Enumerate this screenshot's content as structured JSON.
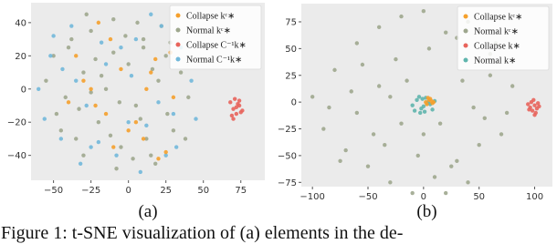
{
  "chart_data": [
    {
      "type": "scatter",
      "title": "(a)",
      "legend": "upper right",
      "xlim": [
        -65,
        91
      ],
      "ylim": [
        -55,
        52
      ],
      "xticks": [
        {
          "value": -50,
          "label": "−50"
        },
        {
          "value": -25,
          "label": "−25"
        },
        0,
        25,
        50,
        75
      ],
      "yticks": [
        {
          "value": -40,
          "label": "−40"
        },
        {
          "value": -20,
          "label": "−20"
        },
        0,
        20,
        40
      ],
      "series": [
        {
          "name": "Collapse kᶜ∗",
          "color": "#f5a02c",
          "x": [
            -30,
            -22,
            -12,
            0,
            10,
            18,
            25,
            -35,
            -25,
            -15,
            5,
            15,
            30,
            -40,
            -20,
            -5,
            20,
            -10,
            12,
            28
          ],
          "y": [
            5,
            -10,
            30,
            -25,
            -30,
            18,
            -38,
            20,
            0,
            -15,
            -20,
            10,
            -5,
            -8,
            40,
            12,
            -42,
            -35,
            0,
            22
          ]
        },
        {
          "name": "Normal kᶜ∗",
          "color": "#9ea78e",
          "x": [
            -55,
            -48,
            -40,
            -35,
            -30,
            -25,
            -20,
            -15,
            -10,
            -5,
            0,
            5,
            10,
            15,
            20,
            25,
            30,
            35,
            40,
            -50,
            -42,
            -33,
            -22,
            -12,
            -2,
            8,
            18,
            28,
            38,
            -45,
            -30,
            -18,
            -6,
            6,
            16,
            26,
            -38,
            -25,
            -10,
            3,
            12,
            22,
            -28,
            -8,
            10
          ],
          "y": [
            5,
            -15,
            25,
            -30,
            10,
            35,
            -20,
            0,
            42,
            -35,
            15,
            -10,
            30,
            -40,
            5,
            20,
            -25,
            10,
            -5,
            20,
            -5,
            -12,
            18,
            -28,
            32,
            -18,
            -45,
            28,
            -30,
            -25,
            -40,
            8,
            -8,
            40,
            12,
            -15,
            30,
            -2,
            22,
            -42,
            -30,
            38,
            45,
            -48,
            25
          ]
        },
        {
          "name": "Collapse C⁻¹k∗",
          "color": "#e8645c",
          "x": [
            68,
            70,
            72,
            74,
            76,
            69,
            71,
            73,
            75,
            70,
            72,
            74
          ],
          "y": [
            -8,
            -12,
            -15,
            -10,
            -13,
            -16,
            -6,
            -9,
            -14,
            -18,
            -11,
            -7
          ]
        },
        {
          "name": "Normal C⁻¹k∗",
          "color": "#72b8da",
          "x": [
            -60,
            -52,
            -45,
            -38,
            -28,
            -18,
            -8,
            2,
            12,
            22,
            32,
            42,
            -56,
            -44,
            -32,
            -20,
            -5,
            8,
            20,
            35,
            -50,
            -35,
            -15,
            0,
            15,
            30,
            -25,
            5,
            25,
            45
          ],
          "y": [
            0,
            20,
            -30,
            38,
            -10,
            28,
            -40,
            8,
            -22,
            38,
            -35,
            5,
            -18,
            12,
            -45,
            -32,
            25,
            -50,
            -8,
            25,
            32,
            5,
            15,
            -20,
            45,
            -15,
            -35,
            30,
            -40,
            -18
          ]
        }
      ]
    },
    {
      "type": "scatter",
      "title": "(b)",
      "legend": "upper right",
      "xlim": [
        -110,
        116
      ],
      "ylim": [
        -79,
        92
      ],
      "xticks": [
        {
          "value": -100,
          "label": "−100"
        },
        {
          "value": -50,
          "label": "−50"
        },
        0,
        50,
        100
      ],
      "yticks": [
        {
          "value": -75,
          "label": "−75"
        },
        {
          "value": -50,
          "label": "−50"
        },
        {
          "value": -25,
          "label": "−25"
        },
        0,
        25,
        50,
        75
      ],
      "series": [
        {
          "name": "Collapse kᶜ∗",
          "color": "#f5a02c",
          "x": [
            2,
            5,
            8,
            4,
            7,
            3,
            6,
            9
          ],
          "y": [
            0,
            2,
            -1,
            4,
            1,
            -2,
            3,
            0
          ]
        },
        {
          "name": "Normal kᶜ∗",
          "color": "#9ea78e",
          "x": [
            -100,
            -90,
            -80,
            -70,
            -60,
            -50,
            -40,
            -30,
            -20,
            -10,
            0,
            10,
            20,
            30,
            40,
            50,
            60,
            70,
            80,
            -85,
            -65,
            -45,
            -25,
            -5,
            15,
            35,
            55,
            75,
            -75,
            -55,
            -35,
            -15,
            5,
            25,
            45,
            65,
            -60,
            -30,
            0,
            30,
            60,
            -20,
            20,
            -40,
            40
          ],
          "y": [
            5,
            -25,
            30,
            -45,
            55,
            -60,
            70,
            -75,
            80,
            -85,
            85,
            -70,
            65,
            -55,
            75,
            -40,
            45,
            -30,
            15,
            -5,
            10,
            -30,
            40,
            -50,
            -20,
            20,
            -15,
            -10,
            -55,
            35,
            -40,
            20,
            50,
            -60,
            -5,
            55,
            -10,
            5,
            -30,
            60,
            25,
            -20,
            -85,
            15,
            -75
          ]
        },
        {
          "name": "Collapse k∗",
          "color": "#e8645c",
          "x": [
            94,
            96,
            98,
            100,
            102,
            104,
            97,
            99,
            101,
            103,
            95,
            100
          ],
          "y": [
            -2,
            -5,
            -8,
            -3,
            -6,
            -4,
            0,
            2,
            -10,
            -1,
            -7,
            -12
          ]
        },
        {
          "name": "Normal k∗",
          "color": "#5fb5ad",
          "x": [
            -10,
            -6,
            -2,
            2,
            6,
            10,
            -8,
            -4,
            0,
            4,
            8,
            -3,
            3,
            -1,
            1
          ],
          "y": [
            -3,
            2,
            -6,
            4,
            -2,
            1,
            -8,
            5,
            -4,
            0,
            -7,
            -10,
            -1,
            3,
            -9
          ]
        }
      ]
    }
  ],
  "caption": "Figure 1: t-SNE visualization of (a) elements in the de-"
}
